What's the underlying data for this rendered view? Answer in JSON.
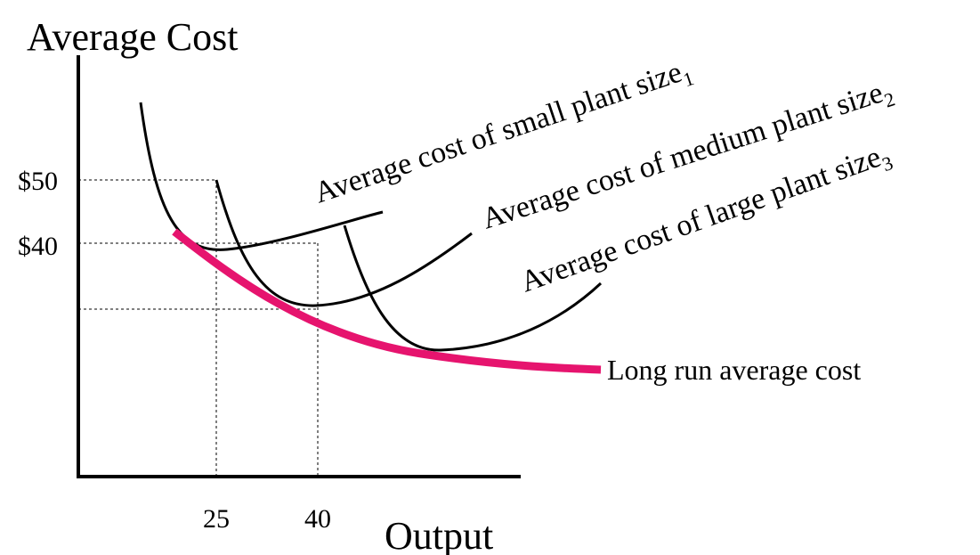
{
  "axes": {
    "y_label": "Average Cost",
    "x_label": "Output",
    "y_ticks": [
      "$50",
      "$40"
    ],
    "x_ticks": [
      "25",
      "40"
    ]
  },
  "curves": [
    {
      "label": "Average cost of small plant size",
      "subscript": "1"
    },
    {
      "label": "Average cost of medium plant size",
      "subscript": "2"
    },
    {
      "label": "Average cost of large plant size",
      "subscript": "3"
    },
    {
      "label": "Long run average cost"
    }
  ]
}
